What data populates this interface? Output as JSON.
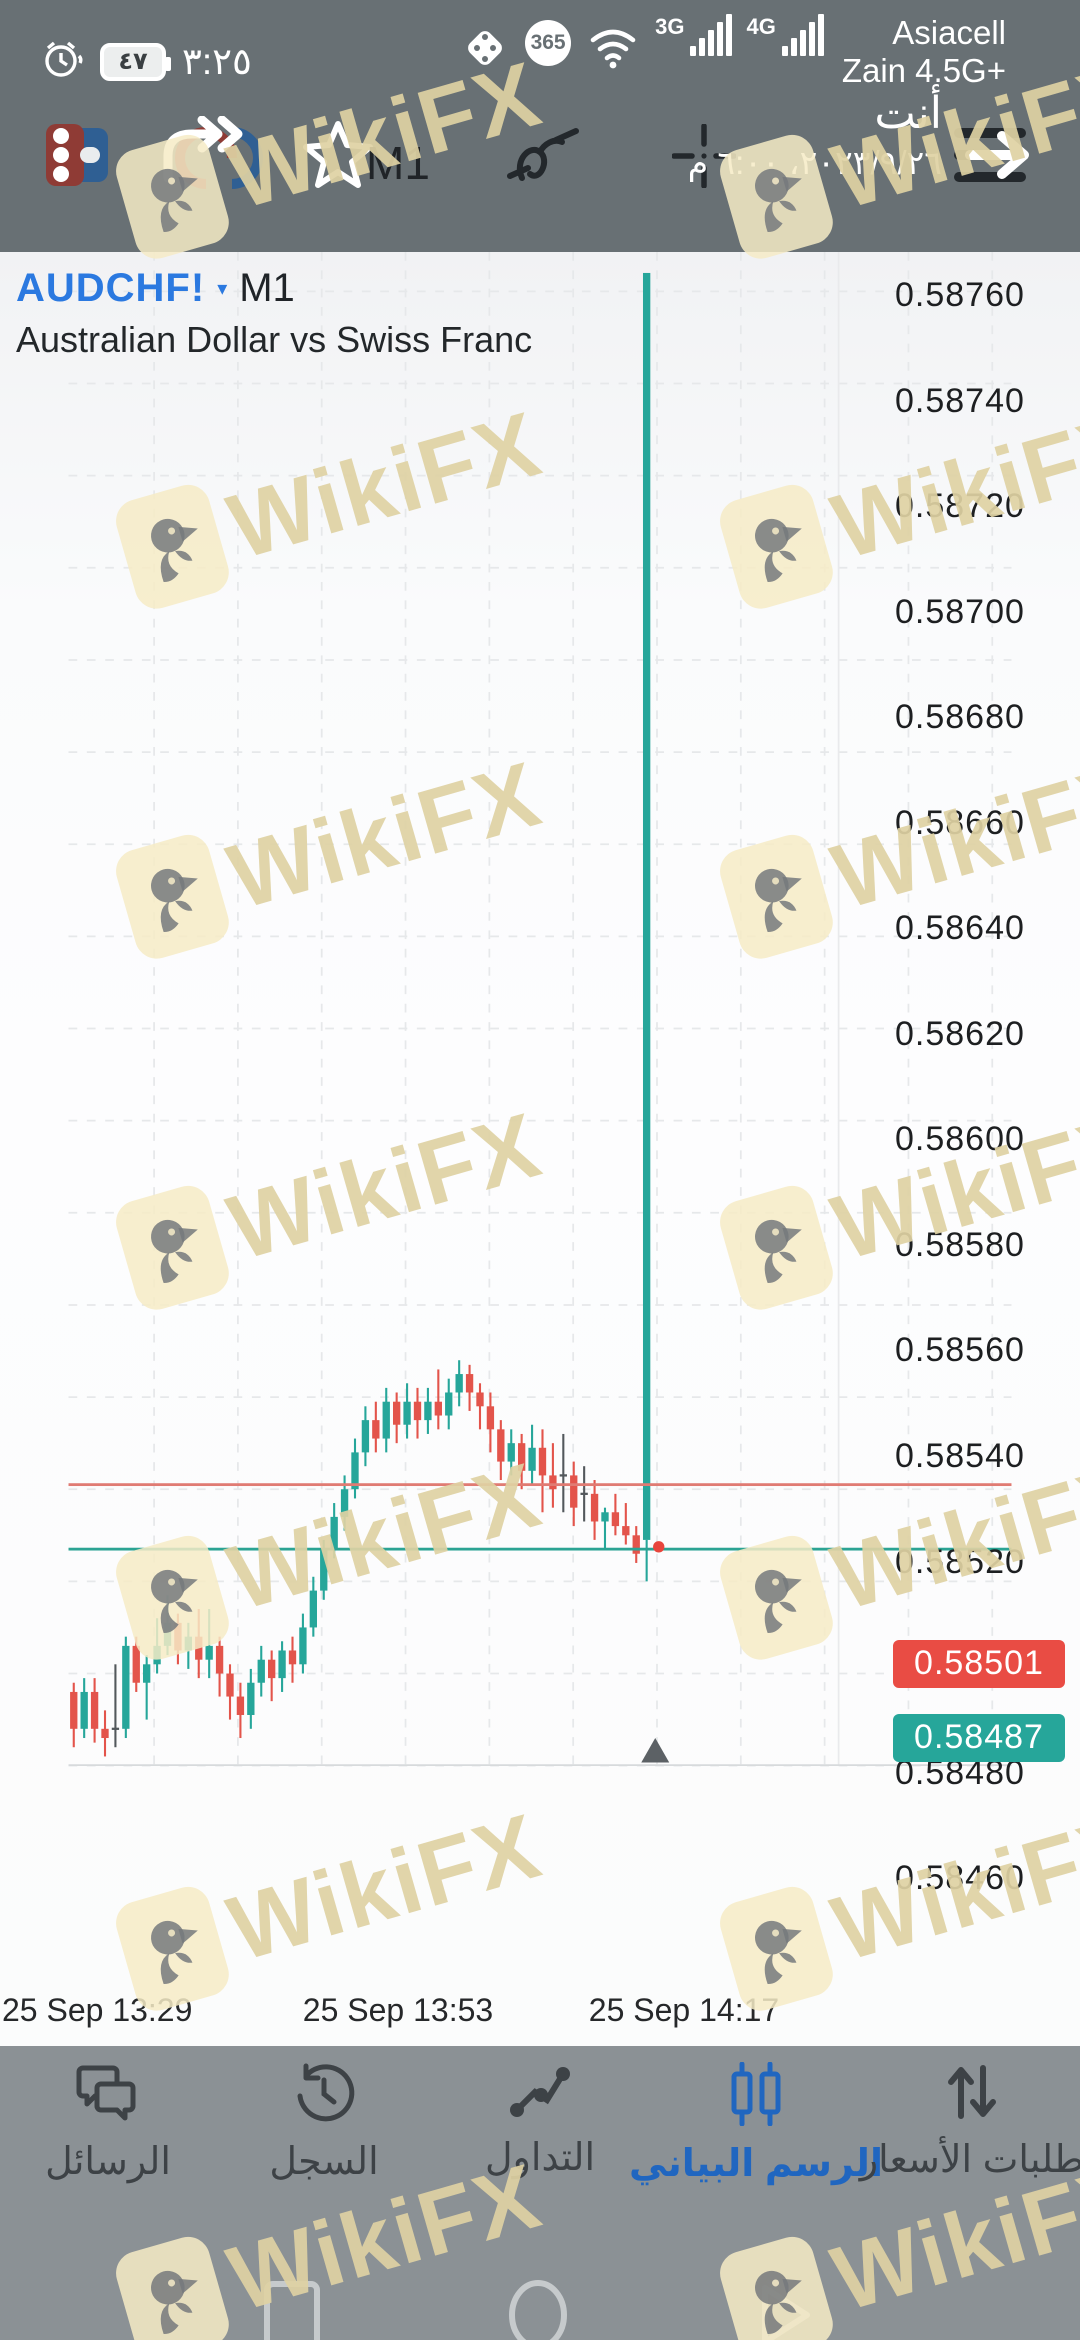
{
  "status_bar": {
    "time": "٣:٢٥",
    "battery_percent": "٤٧",
    "net1_label": "3G",
    "net2_label": "4G",
    "badge365": "365",
    "carrier_line1": "Asiacell",
    "carrier_line2": "Zain 4.5G+",
    "icons": [
      "alarm-icon",
      "dice-icon",
      "365-icon",
      "wifi-icon",
      "signal-bars-3g",
      "signal-bars-4g"
    ]
  },
  "toolbar": {
    "you_label": "أنت",
    "datetime": "٢٠٢٣/٩/٢٦، ٦:٠٠ م",
    "timeframe_label": "M1",
    "icons": [
      "app-logo-icon",
      "redo-clock-icon",
      "star-icon",
      "indicator-wave-icon",
      "crosshair-icon",
      "menu-arrow-icon"
    ]
  },
  "chart": {
    "symbol": "AUDCHF!",
    "symbol_caret": "▾",
    "timeframe": "M1",
    "description": "Australian Dollar vs Swiss Franc",
    "ask_badge": {
      "value": "0.58501",
      "color": "#e94c44"
    },
    "bid_badge": {
      "value": "0.58487",
      "color": "#26a69a"
    }
  },
  "chart_data": {
    "type": "candlestick",
    "title": "AUDCHF! M1",
    "subtitle": "Australian Dollar vs Swiss Franc",
    "ylim": [
      0.5844,
      0.58764
    ],
    "grid": true,
    "up_color": "#26a69a",
    "down_color": "#e3544b",
    "doji_color": "#53585c",
    "y_axis": {
      "labels": [
        "0.58760",
        "0.58740",
        "0.58720",
        "0.58700",
        "0.58680",
        "0.58660",
        "0.58640",
        "0.58620",
        "0.58600",
        "0.58580",
        "0.58560",
        "0.58540",
        "0.58520",
        "0.58480",
        "0.58460"
      ]
    },
    "x_axis": {
      "ticks": [
        {
          "label": "25 Sep 13:29",
          "x": 110
        },
        {
          "label": "25 Sep 13:53",
          "x": 398
        },
        {
          "label": "25 Sep 14:17",
          "x": 684
        }
      ]
    },
    "price_lines": [
      {
        "name": "ask-line",
        "value": 0.58501,
        "color": "#e07b73"
      },
      {
        "name": "bid-line",
        "value": 0.58487,
        "color": "#2ba393"
      }
    ],
    "last_tick": {
      "value": 0.584875,
      "color": "#e8453c"
    },
    "candles_columns": [
      "time",
      "open",
      "high",
      "low",
      "close"
    ],
    "candles": [
      [
        "13:20",
        0.58456,
        0.58458,
        0.58444,
        0.58448
      ],
      [
        "13:21",
        0.58448,
        0.58459,
        0.58446,
        0.58456
      ],
      [
        "13:22",
        0.58456,
        0.58459,
        0.58445,
        0.58448
      ],
      [
        "13:23",
        0.58448,
        0.58452,
        0.58442,
        0.58446
      ],
      [
        "13:24",
        0.58448,
        0.58462,
        0.58444,
        0.58448
      ],
      [
        "13:25",
        0.58448,
        0.58468,
        0.58446,
        0.58466
      ],
      [
        "13:26",
        0.58466,
        0.58468,
        0.58456,
        0.58458
      ],
      [
        "13:27",
        0.58458,
        0.58464,
        0.5845,
        0.58462
      ],
      [
        "13:28",
        0.58462,
        0.58472,
        0.5846,
        0.58466
      ],
      [
        "13:29",
        0.58466,
        0.58477,
        0.58464,
        0.58471
      ],
      [
        "13:30",
        0.58471,
        0.58473,
        0.58462,
        0.58465
      ],
      [
        "13:31",
        0.58465,
        0.58471,
        0.58461,
        0.58468
      ],
      [
        "13:32",
        0.58468,
        0.58474,
        0.58459,
        0.58463
      ],
      [
        "13:33",
        0.58463,
        0.58474,
        0.58459,
        0.58466
      ],
      [
        "13:34",
        0.58466,
        0.58468,
        0.58455,
        0.5846
      ],
      [
        "13:35",
        0.5846,
        0.58462,
        0.5845,
        0.58455
      ],
      [
        "13:36",
        0.58455,
        0.58458,
        0.58446,
        0.58451
      ],
      [
        "13:37",
        0.58451,
        0.58461,
        0.58448,
        0.58458
      ],
      [
        "13:38",
        0.58458,
        0.58466,
        0.58455,
        0.58463
      ],
      [
        "13:39",
        0.58463,
        0.58465,
        0.58454,
        0.58459
      ],
      [
        "13:40",
        0.58459,
        0.58467,
        0.58456,
        0.58465
      ],
      [
        "13:41",
        0.58465,
        0.58468,
        0.58458,
        0.58462
      ],
      [
        "13:42",
        0.58462,
        0.58473,
        0.5846,
        0.5847
      ],
      [
        "13:43",
        0.5847,
        0.58481,
        0.58468,
        0.58478
      ],
      [
        "13:44",
        0.58478,
        0.58489,
        0.58476,
        0.58487
      ],
      [
        "13:45",
        0.58487,
        0.58497,
        0.58485,
        0.58494
      ],
      [
        "13:46",
        0.58494,
        0.58503,
        0.58491,
        0.585
      ],
      [
        "13:47",
        0.585,
        0.58511,
        0.58498,
        0.58508
      ],
      [
        "13:48",
        0.58508,
        0.58518,
        0.58505,
        0.58515
      ],
      [
        "13:49",
        0.58515,
        0.58519,
        0.58508,
        0.58511
      ],
      [
        "13:50",
        0.58511,
        0.58522,
        0.58508,
        0.58519
      ],
      [
        "13:51",
        0.58519,
        0.58521,
        0.5851,
        0.58514
      ],
      [
        "13:52",
        0.58514,
        0.58523,
        0.58511,
        0.58519
      ],
      [
        "13:53",
        0.58519,
        0.58522,
        0.58511,
        0.58515
      ],
      [
        "13:54",
        0.58515,
        0.58522,
        0.58512,
        0.58519
      ],
      [
        "13:55",
        0.58519,
        0.58526,
        0.58513,
        0.58516
      ],
      [
        "13:56",
        0.58516,
        0.58524,
        0.58513,
        0.58521
      ],
      [
        "13:57",
        0.58521,
        0.58528,
        0.58518,
        0.58525
      ],
      [
        "13:58",
        0.58525,
        0.58527,
        0.58517,
        0.58521
      ],
      [
        "13:59",
        0.58521,
        0.58523,
        0.58513,
        0.58518
      ],
      [
        "14:00",
        0.58518,
        0.58521,
        0.58508,
        0.58513
      ],
      [
        "14:01",
        0.58513,
        0.58515,
        0.58502,
        0.58506
      ],
      [
        "14:02",
        0.58506,
        0.58513,
        0.58503,
        0.5851
      ],
      [
        "14:03",
        0.5851,
        0.58512,
        0.585,
        0.58504
      ],
      [
        "14:04",
        0.58504,
        0.58514,
        0.58501,
        0.58509
      ],
      [
        "14:05",
        0.58509,
        0.58513,
        0.58495,
        0.58503
      ],
      [
        "14:06",
        0.58503,
        0.5851,
        0.58496,
        0.585
      ],
      [
        "14:07",
        0.58503,
        0.58512,
        0.58495,
        0.58503
      ],
      [
        "14:08",
        0.58503,
        0.58506,
        0.58492,
        0.58496
      ],
      [
        "14:09",
        0.58499,
        0.58505,
        0.58493,
        0.58499
      ],
      [
        "14:10",
        0.58499,
        0.58502,
        0.58489,
        0.58493
      ],
      [
        "14:11",
        0.58493,
        0.58496,
        0.58487,
        0.58495
      ],
      [
        "14:12",
        0.58495,
        0.58499,
        0.5849,
        0.58492
      ],
      [
        "14:13",
        0.58492,
        0.58497,
        0.58488,
        0.5849
      ],
      [
        "14:14",
        0.5849,
        0.58492,
        0.58484,
        0.58486
      ],
      [
        "14:15",
        0.58488,
        0.58764,
        0.5848,
        0.58489
      ]
    ]
  },
  "watermark": {
    "text": "WikiFX"
  },
  "bottom_nav": {
    "items": [
      {
        "label": "الرسائل",
        "icon": "messages-icon",
        "active": false
      },
      {
        "label": "السجل",
        "icon": "history-icon",
        "active": false
      },
      {
        "label": "التداول",
        "icon": "trade-icon",
        "active": false
      },
      {
        "label": "الرسم البياني",
        "icon": "chart-icon",
        "active": true
      },
      {
        "label": "طلبات الأسعار",
        "icon": "quotes-icon",
        "active": false
      }
    ]
  },
  "system_nav": [
    "recents",
    "home",
    "back"
  ]
}
